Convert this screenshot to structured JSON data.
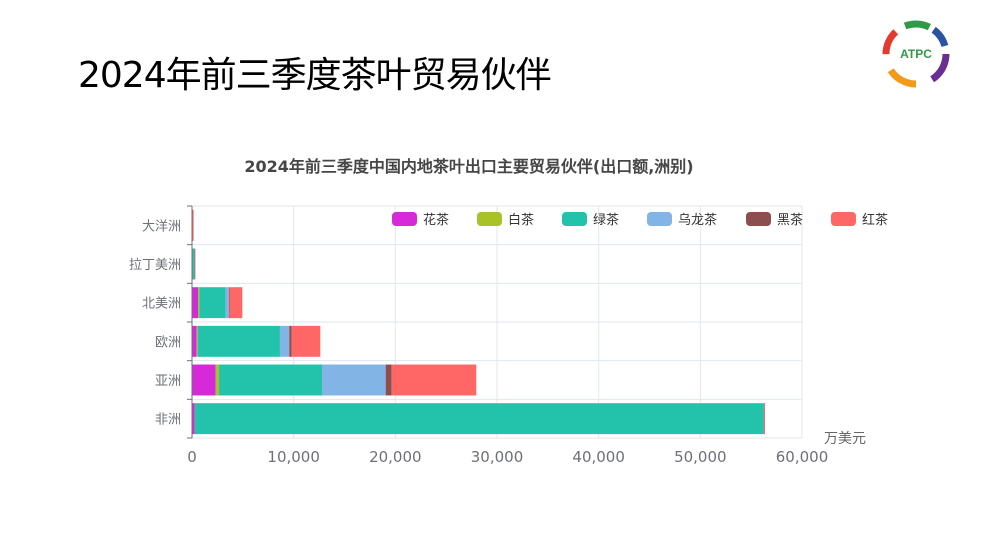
{
  "slide_title": "2024年前三季度茶叶贸易伙伴",
  "logo_text": "ATPC",
  "chart_data": {
    "type": "bar",
    "orientation": "horizontal",
    "stacked": true,
    "title": "2024年前三季度中国内地茶叶出口主要贸易伙伴(出口额,洲别)",
    "xlabel": "万美元",
    "xlim": [
      0,
      60000
    ],
    "xticks": [
      "0",
      "10,000",
      "20,000",
      "30,000",
      "40,000",
      "50,000",
      "60,000"
    ],
    "grid": true,
    "legend_position": "top-right",
    "categories": [
      "非洲",
      "亚洲",
      "欧洲",
      "北美洲",
      "拉丁美洲",
      "大洋洲"
    ],
    "series": [
      {
        "name": "花茶",
        "color": "#d62ad8",
        "values": [
          260,
          2330,
          460,
          590,
          10,
          10
        ]
      },
      {
        "name": "白茶",
        "color": "#a8c227",
        "values": [
          10,
          330,
          100,
          130,
          5,
          5
        ]
      },
      {
        "name": "绿茶",
        "color": "#22c3aa",
        "values": [
          55970,
          10130,
          8090,
          2590,
          230,
          30
        ]
      },
      {
        "name": "乌龙茶",
        "color": "#82b5e6",
        "values": [
          10,
          6260,
          920,
          330,
          20,
          10
        ]
      },
      {
        "name": "黑茶",
        "color": "#8c4e4e",
        "values": [
          10,
          590,
          230,
          30,
          5,
          5
        ]
      },
      {
        "name": "红茶",
        "color": "#ff6666",
        "values": [
          100,
          8320,
          2820,
          1280,
          60,
          100
        ]
      }
    ]
  }
}
